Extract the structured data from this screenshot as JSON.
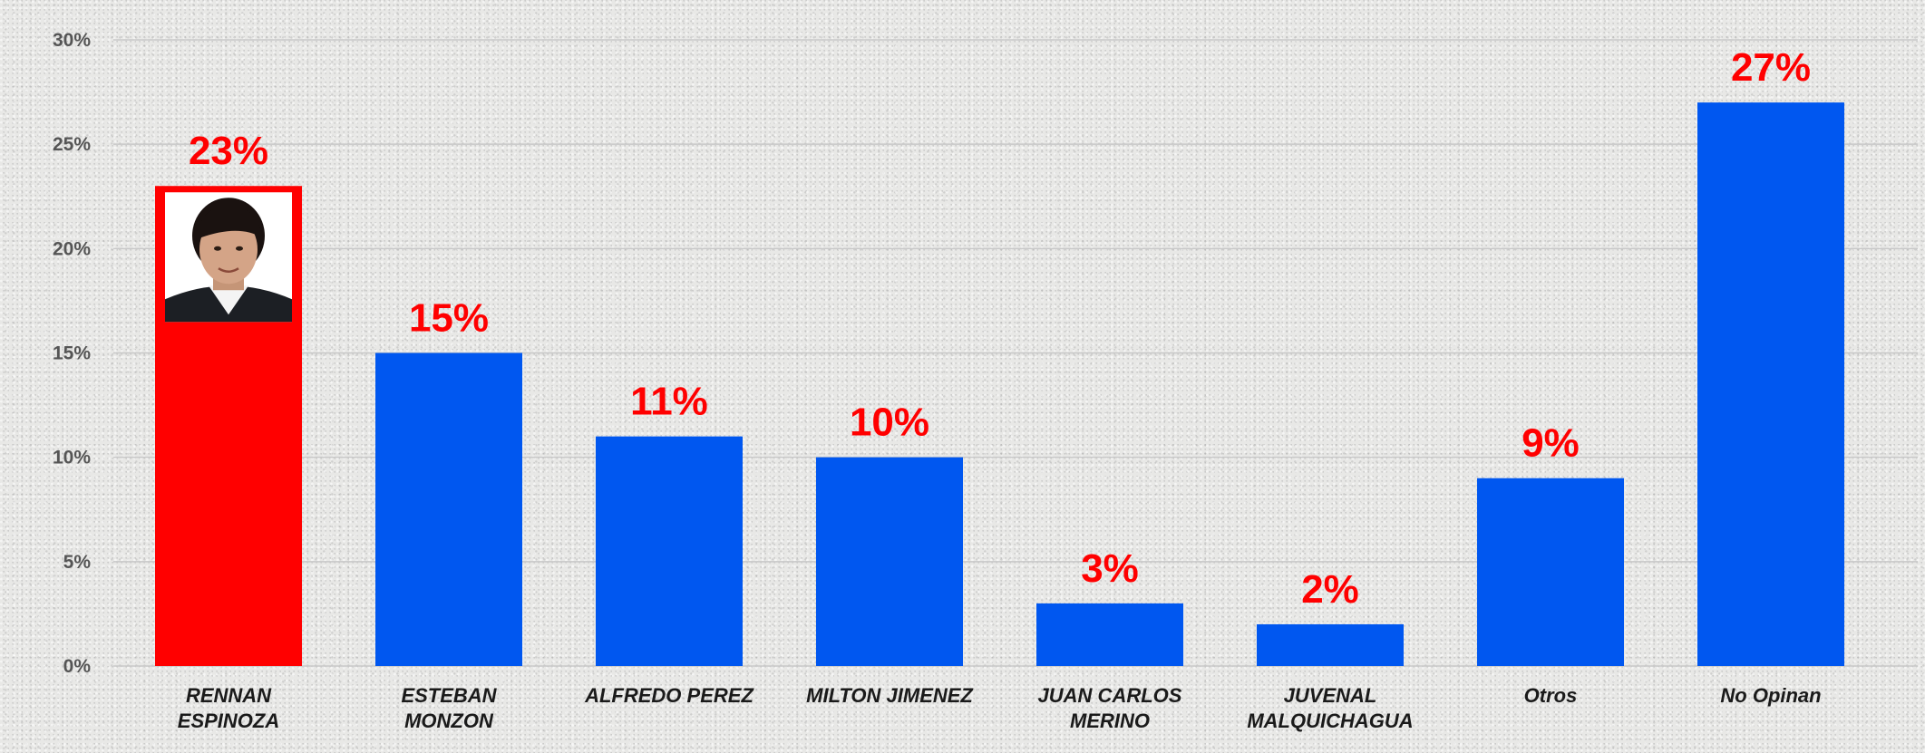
{
  "chart_data": {
    "type": "bar",
    "title": "",
    "xlabel": "",
    "ylabel": "",
    "ylim": [
      0,
      30
    ],
    "yticks": [
      "0%",
      "5%",
      "10%",
      "15%",
      "20%",
      "25%",
      "30%"
    ],
    "ytick_values": [
      0,
      5,
      10,
      15,
      20,
      25,
      30
    ],
    "grid": true,
    "legend": "none",
    "categories": [
      [
        "RENNAN",
        "ESPINOZA"
      ],
      [
        "ESTEBAN",
        "MONZON"
      ],
      [
        "ALFREDO PEREZ"
      ],
      [
        "MILTON JIMENEZ"
      ],
      [
        "JUAN CARLOS",
        "MERINO"
      ],
      [
        "JUVENAL",
        "MALQUICHAGUA"
      ],
      [
        "Otros"
      ],
      [
        "No Opinan"
      ]
    ],
    "values": [
      23,
      15,
      11,
      10,
      3,
      2,
      9,
      27
    ],
    "data_labels": [
      "23%",
      "15%",
      "11%",
      "10%",
      "3%",
      "2%",
      "9%",
      "27%"
    ],
    "colors": [
      "#ff0000",
      "#0057f0",
      "#0057f0",
      "#0057f0",
      "#0057f0",
      "#0057f0",
      "#0057f0",
      "#0057f0"
    ],
    "highlight_index": 0,
    "photo": "candidate-portrait"
  }
}
